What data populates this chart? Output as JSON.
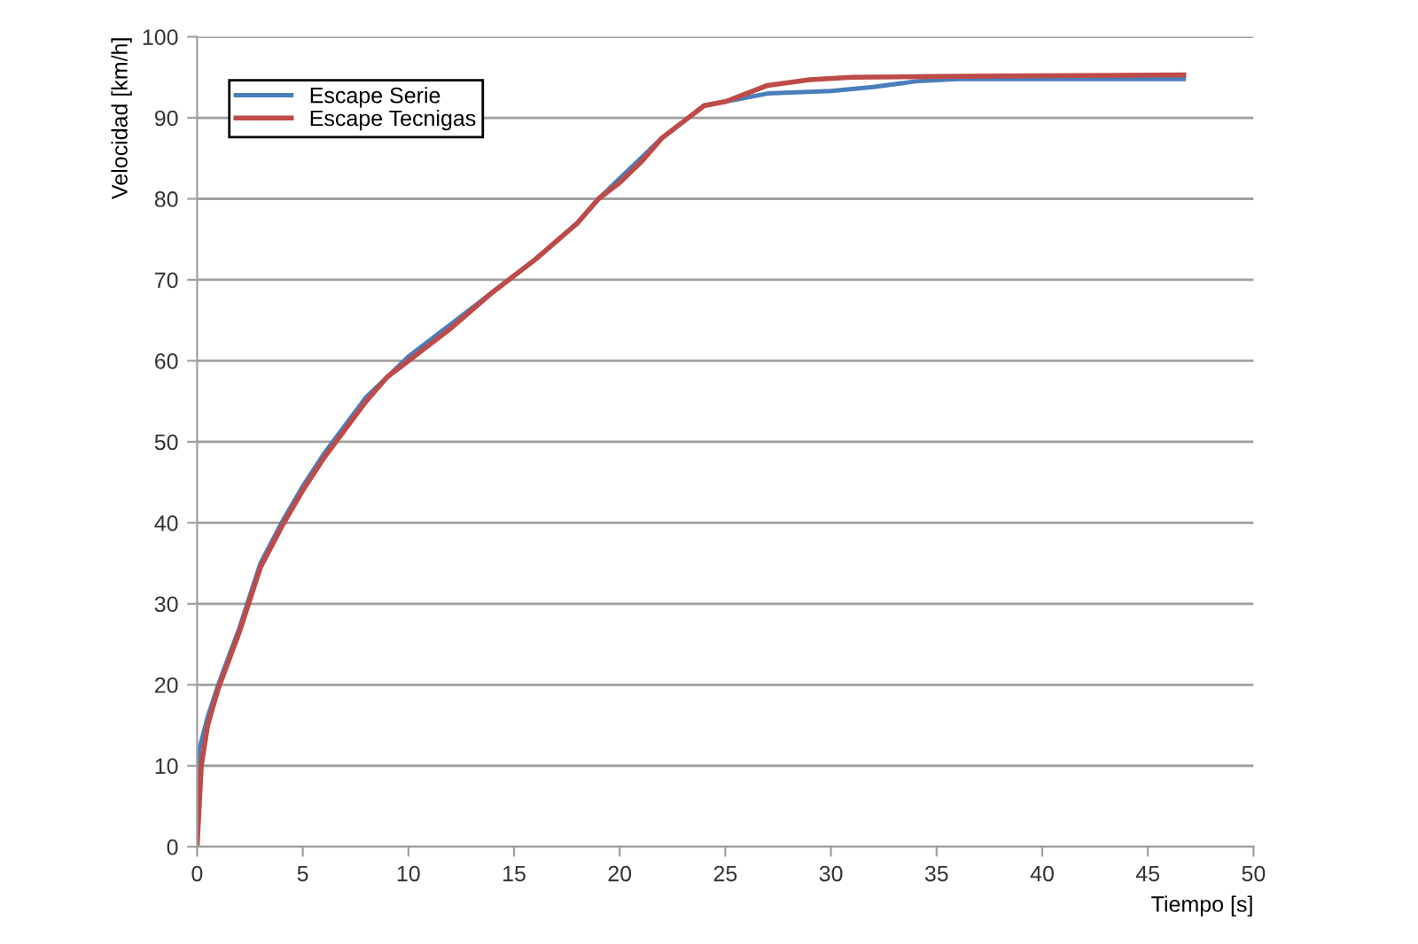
{
  "chart_data": {
    "type": "line",
    "xlabel": "Tiempo [s]",
    "ylabel": "Velocidad [km/h]",
    "xlim": [
      0,
      50
    ],
    "xticks": [
      0,
      5,
      10,
      15,
      20,
      25,
      30,
      35,
      40,
      45,
      50
    ],
    "ylim": [
      0,
      100
    ],
    "yticks": [
      0,
      10,
      20,
      30,
      40,
      50,
      60,
      70,
      80,
      90,
      100
    ],
    "grid": "y",
    "legend": "top left",
    "marker": "none",
    "line_style": "solid",
    "series": [
      {
        "name": "Escape Serie",
        "color": "#4a7ebb",
        "x": [
          0,
          0.1,
          0.5,
          1,
          2,
          3,
          4,
          5,
          6,
          7,
          8,
          9,
          10,
          12,
          14,
          16,
          18,
          19,
          20,
          21,
          22,
          23,
          24,
          25,
          27,
          30,
          32,
          34,
          36,
          40,
          46.7
        ],
        "values": [
          0,
          12,
          16,
          20,
          27,
          35,
          40,
          44.5,
          48.5,
          52,
          55.5,
          58,
          60.5,
          64.5,
          68.5,
          72.5,
          77,
          80,
          82.5,
          85,
          87.5,
          89.5,
          91.5,
          92,
          93,
          93.3,
          93.8,
          94.5,
          94.8,
          94.8,
          94.8
        ]
      },
      {
        "name": "Escape Tecnigas",
        "color": "#be4b48",
        "x": [
          0,
          0.2,
          0.5,
          1,
          2,
          3,
          4,
          5,
          6,
          7,
          8,
          9,
          10,
          12,
          14,
          16,
          18,
          19,
          20,
          21,
          22,
          23,
          24,
          25,
          26,
          27,
          29,
          31,
          35,
          40,
          46.7
        ],
        "values": [
          0,
          10,
          15,
          19.5,
          26.5,
          34.5,
          39.5,
          44,
          48,
          51.5,
          55,
          58,
          60,
          64,
          68.5,
          72.5,
          77,
          80,
          82,
          84.5,
          87.5,
          89.5,
          91.5,
          92,
          93,
          94,
          94.7,
          95,
          95.1,
          95.2,
          95.3
        ]
      }
    ]
  }
}
